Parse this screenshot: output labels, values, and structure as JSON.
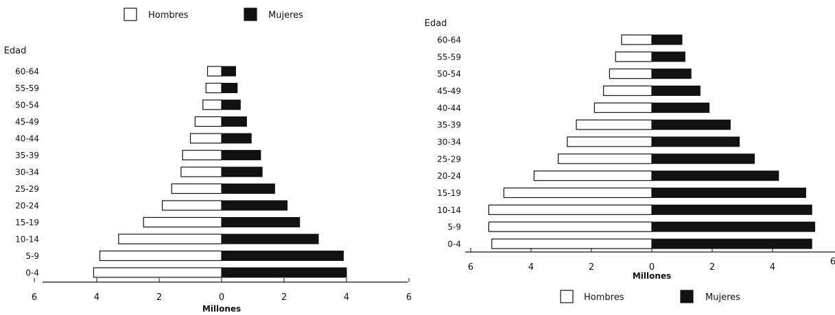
{
  "chart_data": [
    {
      "type": "bar",
      "orientation": "horizontal",
      "layout": "population-pyramid",
      "ylabel": "Edad",
      "xlabel": "Millones",
      "categories": [
        "0-4",
        "5-9",
        "10-14",
        "15-19",
        "20-24",
        "25-29",
        "30-34",
        "35-39",
        "40-44",
        "45-49",
        "50-54",
        "55-59",
        "60-64"
      ],
      "series": [
        {
          "name": "Hombres",
          "side": "left",
          "color": "#ffffff",
          "values": [
            4.1,
            3.9,
            3.3,
            2.5,
            1.9,
            1.6,
            1.3,
            1.25,
            1.0,
            0.85,
            0.6,
            0.5,
            0.45
          ]
        },
        {
          "name": "Mujeres",
          "side": "right",
          "color": "#111111",
          "values": [
            4.0,
            3.9,
            3.1,
            2.5,
            2.1,
            1.7,
            1.3,
            1.25,
            0.95,
            0.8,
            0.6,
            0.5,
            0.45
          ]
        }
      ],
      "xlim": [
        -6,
        6
      ],
      "xticks": [
        -6,
        -4,
        -2,
        0,
        2,
        4,
        6
      ],
      "xtick_labels": [
        "6",
        "4",
        "2",
        "0",
        "2",
        "4",
        "6"
      ],
      "legend_position": "top"
    },
    {
      "type": "bar",
      "orientation": "horizontal",
      "layout": "population-pyramid",
      "ylabel": "Edad",
      "xlabel": "Millones",
      "categories": [
        "0-4",
        "5-9",
        "10-14",
        "15-19",
        "20-24",
        "25-29",
        "30-34",
        "35-39",
        "40-44",
        "45-49",
        "50-54",
        "55-59",
        "60-64"
      ],
      "series": [
        {
          "name": "Hombres",
          "side": "left",
          "color": "#ffffff",
          "values": [
            5.3,
            5.4,
            5.4,
            4.9,
            3.9,
            3.1,
            2.8,
            2.5,
            1.9,
            1.6,
            1.4,
            1.2,
            1.0
          ]
        },
        {
          "name": "Mujeres",
          "side": "right",
          "color": "#111111",
          "values": [
            5.3,
            5.4,
            5.3,
            5.1,
            4.2,
            3.4,
            2.9,
            2.6,
            1.9,
            1.6,
            1.3,
            1.1,
            1.0
          ]
        }
      ],
      "xlim": [
        -6,
        6
      ],
      "xticks": [
        -6,
        -4,
        -2,
        0,
        2,
        4,
        6
      ],
      "xtick_labels": [
        "6",
        "4",
        "2",
        "0",
        "2",
        "4",
        "6"
      ],
      "legend_position": "bottom"
    }
  ]
}
